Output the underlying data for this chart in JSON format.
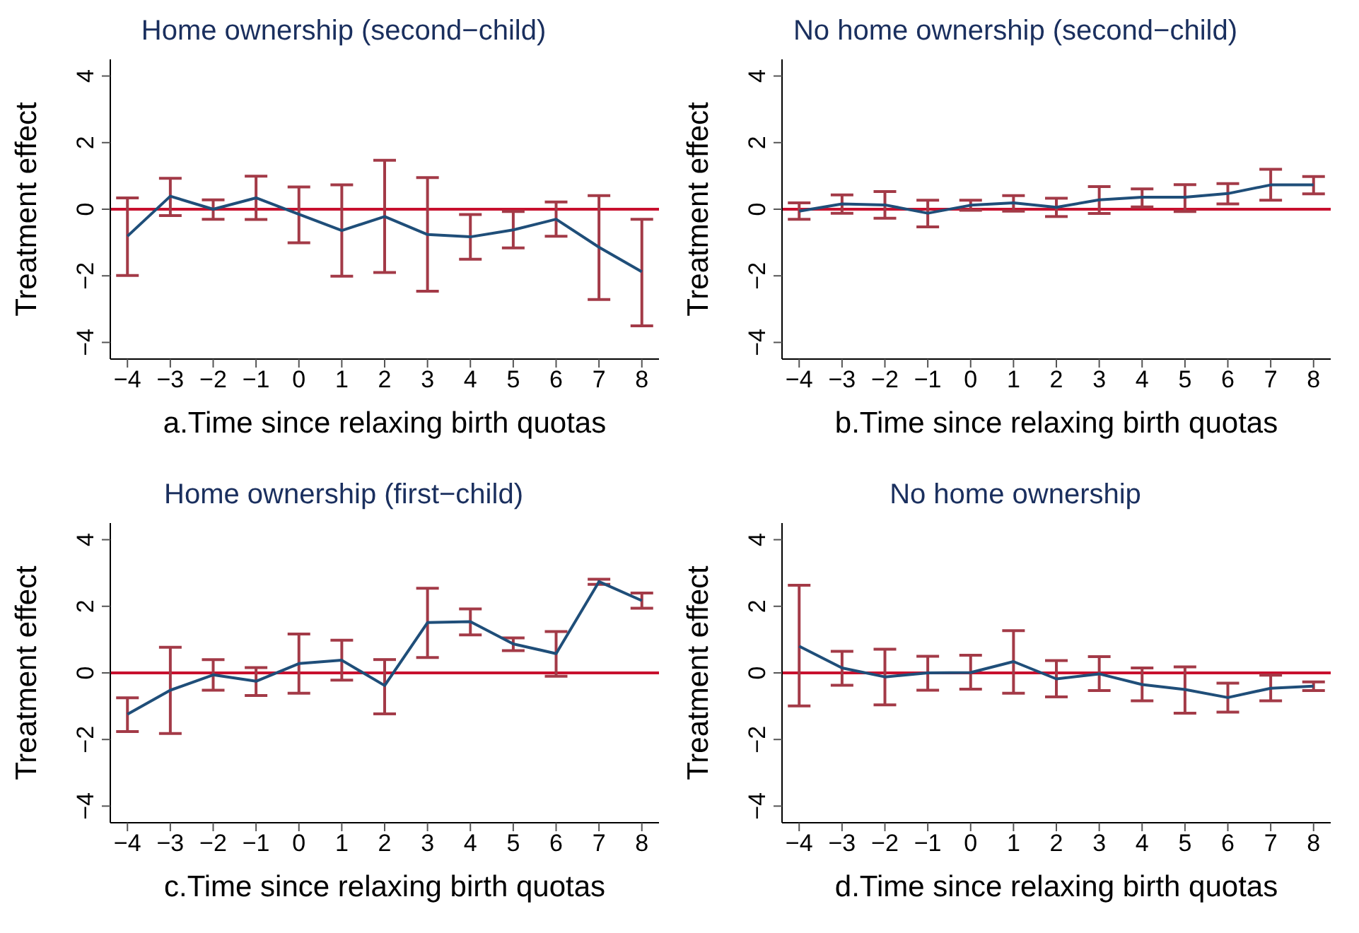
{
  "chart_data": [
    {
      "type": "line",
      "title": "Home ownership (second−child)",
      "xlabel": "a.Time since relaxing birth quotas",
      "ylabel": "Treatment effect",
      "x": [
        -4,
        -3,
        -2,
        -1,
        0,
        1,
        2,
        3,
        4,
        5,
        6,
        7,
        8
      ],
      "series": [
        {
          "color": "#1f4e79",
          "values": [
            -0.81,
            0.39,
            0.0,
            0.34,
            -0.15,
            -0.64,
            -0.22,
            -0.76,
            -0.83,
            -0.62,
            -0.3,
            -1.14,
            -1.88
          ],
          "errors": [
            [
              -1.99,
              0.34
            ],
            [
              -0.19,
              0.93
            ],
            [
              -0.3,
              0.28
            ],
            [
              -0.31,
              0.99
            ],
            [
              -1.01,
              0.67
            ],
            [
              -2.01,
              0.73
            ],
            [
              -1.9,
              1.47
            ],
            [
              -2.46,
              0.95
            ],
            [
              -1.5,
              -0.16
            ],
            [
              -1.16,
              -0.07
            ],
            [
              -0.81,
              0.22
            ],
            [
              -2.71,
              0.41
            ],
            [
              -3.5,
              -0.3
            ]
          ]
        }
      ],
      "xlim": [
        -4.4,
        8.4
      ],
      "xticks": [
        -4,
        -3,
        -2,
        -1,
        0,
        1,
        2,
        3,
        4,
        5,
        6,
        7,
        8
      ],
      "ylim": [
        -4.5,
        4.5
      ],
      "yticks": [
        -4,
        -2,
        0,
        2,
        4
      ],
      "ref_lines": [
        {
          "axis": "y",
          "value": 0,
          "color": "#c8102e"
        }
      ],
      "marker": "none"
    },
    {
      "type": "line",
      "title": "No home ownership (second−child)",
      "xlabel": "b.Time since relaxing birth quotas",
      "ylabel": "Treatment effect",
      "x": [
        -4,
        -3,
        -2,
        -1,
        0,
        1,
        2,
        3,
        4,
        5,
        6,
        7,
        8
      ],
      "series": [
        {
          "color": "#1f4e79",
          "values": [
            -0.06,
            0.16,
            0.13,
            -0.12,
            0.12,
            0.19,
            0.06,
            0.28,
            0.36,
            0.36,
            0.47,
            0.73,
            0.73
          ],
          "errors": [
            [
              -0.3,
              0.19
            ],
            [
              -0.12,
              0.43
            ],
            [
              -0.27,
              0.53
            ],
            [
              -0.53,
              0.27
            ],
            [
              -0.03,
              0.27
            ],
            [
              -0.06,
              0.41
            ],
            [
              -0.22,
              0.33
            ],
            [
              -0.13,
              0.68
            ],
            [
              0.07,
              0.61
            ],
            [
              -0.07,
              0.74
            ],
            [
              0.16,
              0.77
            ],
            [
              0.27,
              1.2
            ],
            [
              0.46,
              0.98
            ]
          ]
        }
      ],
      "xlim": [
        -4.4,
        8.4
      ],
      "xticks": [
        -4,
        -3,
        -2,
        -1,
        0,
        1,
        2,
        3,
        4,
        5,
        6,
        7,
        8
      ],
      "ylim": [
        -4.5,
        4.5
      ],
      "yticks": [
        -4,
        -2,
        0,
        2,
        4
      ],
      "ref_lines": [
        {
          "axis": "y",
          "value": 0,
          "color": "#c8102e"
        }
      ],
      "marker": "none"
    },
    {
      "type": "line",
      "title": "Home ownership (first−child)",
      "xlabel": "c.Time since relaxing birth quotas",
      "ylabel": "Treatment effect",
      "x": [
        -4,
        -3,
        -2,
        -1,
        0,
        1,
        2,
        3,
        4,
        5,
        6,
        7,
        8
      ],
      "series": [
        {
          "color": "#1f4e79",
          "values": [
            -1.24,
            -0.52,
            -0.06,
            -0.25,
            0.28,
            0.38,
            -0.38,
            1.51,
            1.54,
            0.87,
            0.58,
            2.74,
            2.17
          ],
          "errors": [
            [
              -1.76,
              -0.75
            ],
            [
              -1.82,
              0.77
            ],
            [
              -0.52,
              0.4
            ],
            [
              -0.68,
              0.16
            ],
            [
              -0.61,
              1.17
            ],
            [
              -0.22,
              0.98
            ],
            [
              -1.23,
              0.4
            ],
            [
              0.46,
              2.54
            ],
            [
              1.14,
              1.92
            ],
            [
              0.67,
              1.05
            ],
            [
              -0.1,
              1.24
            ],
            [
              2.66,
              2.81
            ],
            [
              1.94,
              2.4
            ]
          ]
        }
      ],
      "xlim": [
        -4.4,
        8.4
      ],
      "xticks": [
        -4,
        -3,
        -2,
        -1,
        0,
        1,
        2,
        3,
        4,
        5,
        6,
        7,
        8
      ],
      "ylim": [
        -4.5,
        4.5
      ],
      "yticks": [
        -4,
        -2,
        0,
        2,
        4
      ],
      "ref_lines": [
        {
          "axis": "y",
          "value": 0,
          "color": "#c8102e"
        }
      ],
      "marker": "none"
    },
    {
      "type": "line",
      "title": "No home ownership",
      "xlabel": "d.Time since relaxing birth quotas",
      "ylabel": "Treatment effect",
      "x": [
        -4,
        -3,
        -2,
        -1,
        0,
        1,
        2,
        3,
        4,
        5,
        6,
        7,
        8
      ],
      "series": [
        {
          "color": "#1f4e79",
          "values": [
            0.8,
            0.15,
            -0.12,
            0.0,
            0.01,
            0.34,
            -0.18,
            -0.03,
            -0.35,
            -0.5,
            -0.74,
            -0.46,
            -0.4
          ],
          "errors": [
            [
              -0.99,
              2.63
            ],
            [
              -0.37,
              0.65
            ],
            [
              -0.96,
              0.71
            ],
            [
              -0.52,
              0.5
            ],
            [
              -0.49,
              0.53
            ],
            [
              -0.61,
              1.27
            ],
            [
              -0.72,
              0.37
            ],
            [
              -0.53,
              0.49
            ],
            [
              -0.84,
              0.15
            ],
            [
              -1.21,
              0.18
            ],
            [
              -1.18,
              -0.31
            ],
            [
              -0.84,
              -0.07
            ],
            [
              -0.53,
              -0.27
            ]
          ]
        }
      ],
      "xlim": [
        -4.4,
        8.4
      ],
      "xticks": [
        -4,
        -3,
        -2,
        -1,
        0,
        1,
        2,
        3,
        4,
        5,
        6,
        7,
        8
      ],
      "ylim": [
        -4.5,
        4.5
      ],
      "yticks": [
        -4,
        -2,
        0,
        2,
        4
      ],
      "ref_lines": [
        {
          "axis": "y",
          "value": 0,
          "color": "#c8102e"
        }
      ],
      "marker": "none"
    }
  ]
}
